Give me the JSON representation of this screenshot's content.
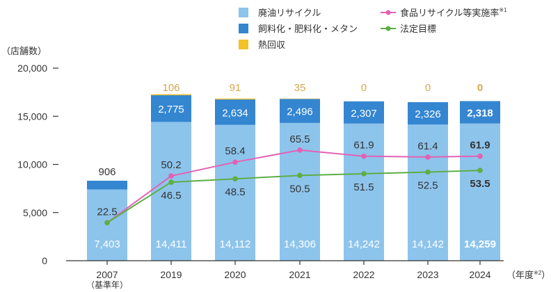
{
  "colors": {
    "haiyu": "#8dc4ec",
    "shiryo": "#3486d1",
    "netsu": "#f2c227",
    "rate": "#e362b4",
    "target": "#5cae45",
    "axis": "#333333",
    "label_on_bar": "#ffffff",
    "label_dark": "#333333",
    "netsu_label": "#d9a54a"
  },
  "legend": [
    {
      "key": "haiyu",
      "label": "廃油リサイクル"
    },
    {
      "key": "shiryo",
      "label": "飼料化・肥料化・メタン"
    },
    {
      "key": "netsu",
      "label": "熱回収"
    },
    {
      "key": "rate",
      "label": "食品リサイクル等実施率",
      "sup": "※1"
    },
    {
      "key": "target",
      "label": "法定目標"
    }
  ],
  "y_unit_label": "（店舗数）",
  "x_unit_label": "（年度",
  "x_unit_sup": "※2",
  "x_unit_close": "）",
  "chart_data": {
    "type": "bar",
    "stacked": true,
    "categories": [
      "2007",
      "2019",
      "2020",
      "2021",
      "2022",
      "2023",
      "2024"
    ],
    "category_sublabels": [
      "（基準年）",
      "",
      "",
      "",
      "",
      "",
      ""
    ],
    "ylim": [
      0,
      20000
    ],
    "yticks": [
      {
        "value": 0,
        "label": "0"
      },
      {
        "value": 5000,
        "label": "5,000"
      },
      {
        "value": 10000,
        "label": "10,000"
      },
      {
        "value": 15000,
        "label": "15,000"
      },
      {
        "value": 20000,
        "label": "20,000"
      }
    ],
    "series": [
      {
        "key": "haiyu",
        "name": "廃油リサイクル",
        "values": [
          7403,
          14411,
          14112,
          14306,
          14242,
          14142,
          14259
        ],
        "labels": [
          "7,403",
          "14,411",
          "14,112",
          "14,306",
          "14,242",
          "14,142",
          "14,259"
        ]
      },
      {
        "key": "shiryo",
        "name": "飼料化・肥料化・メタン",
        "values": [
          906,
          2775,
          2634,
          2496,
          2307,
          2326,
          2318
        ],
        "labels": [
          "906",
          "2,775",
          "2,634",
          "2,496",
          "2,307",
          "2,326",
          "2,318"
        ]
      },
      {
        "key": "netsu",
        "name": "熱回収",
        "values": [
          0,
          106,
          91,
          35,
          0,
          0,
          0
        ],
        "labels": [
          "",
          "106",
          "91",
          "35",
          "0",
          "0",
          "0"
        ]
      }
    ],
    "lines": [
      {
        "key": "rate",
        "name": "食品リサイクル等実施率",
        "values": [
          22.5,
          50.2,
          58.4,
          65.5,
          61.9,
          61.4,
          61.9
        ],
        "labels": [
          "22.5",
          "50.2",
          "58.4",
          "65.5",
          "61.9",
          "61.4",
          "61.9"
        ]
      },
      {
        "key": "target",
        "name": "法定目標",
        "values": [
          22.5,
          46.5,
          48.5,
          50.5,
          51.5,
          52.5,
          53.5
        ],
        "labels": [
          "",
          "46.5",
          "48.5",
          "50.5",
          "51.5",
          "52.5",
          "53.5"
        ]
      }
    ],
    "highlight_last": true
  }
}
